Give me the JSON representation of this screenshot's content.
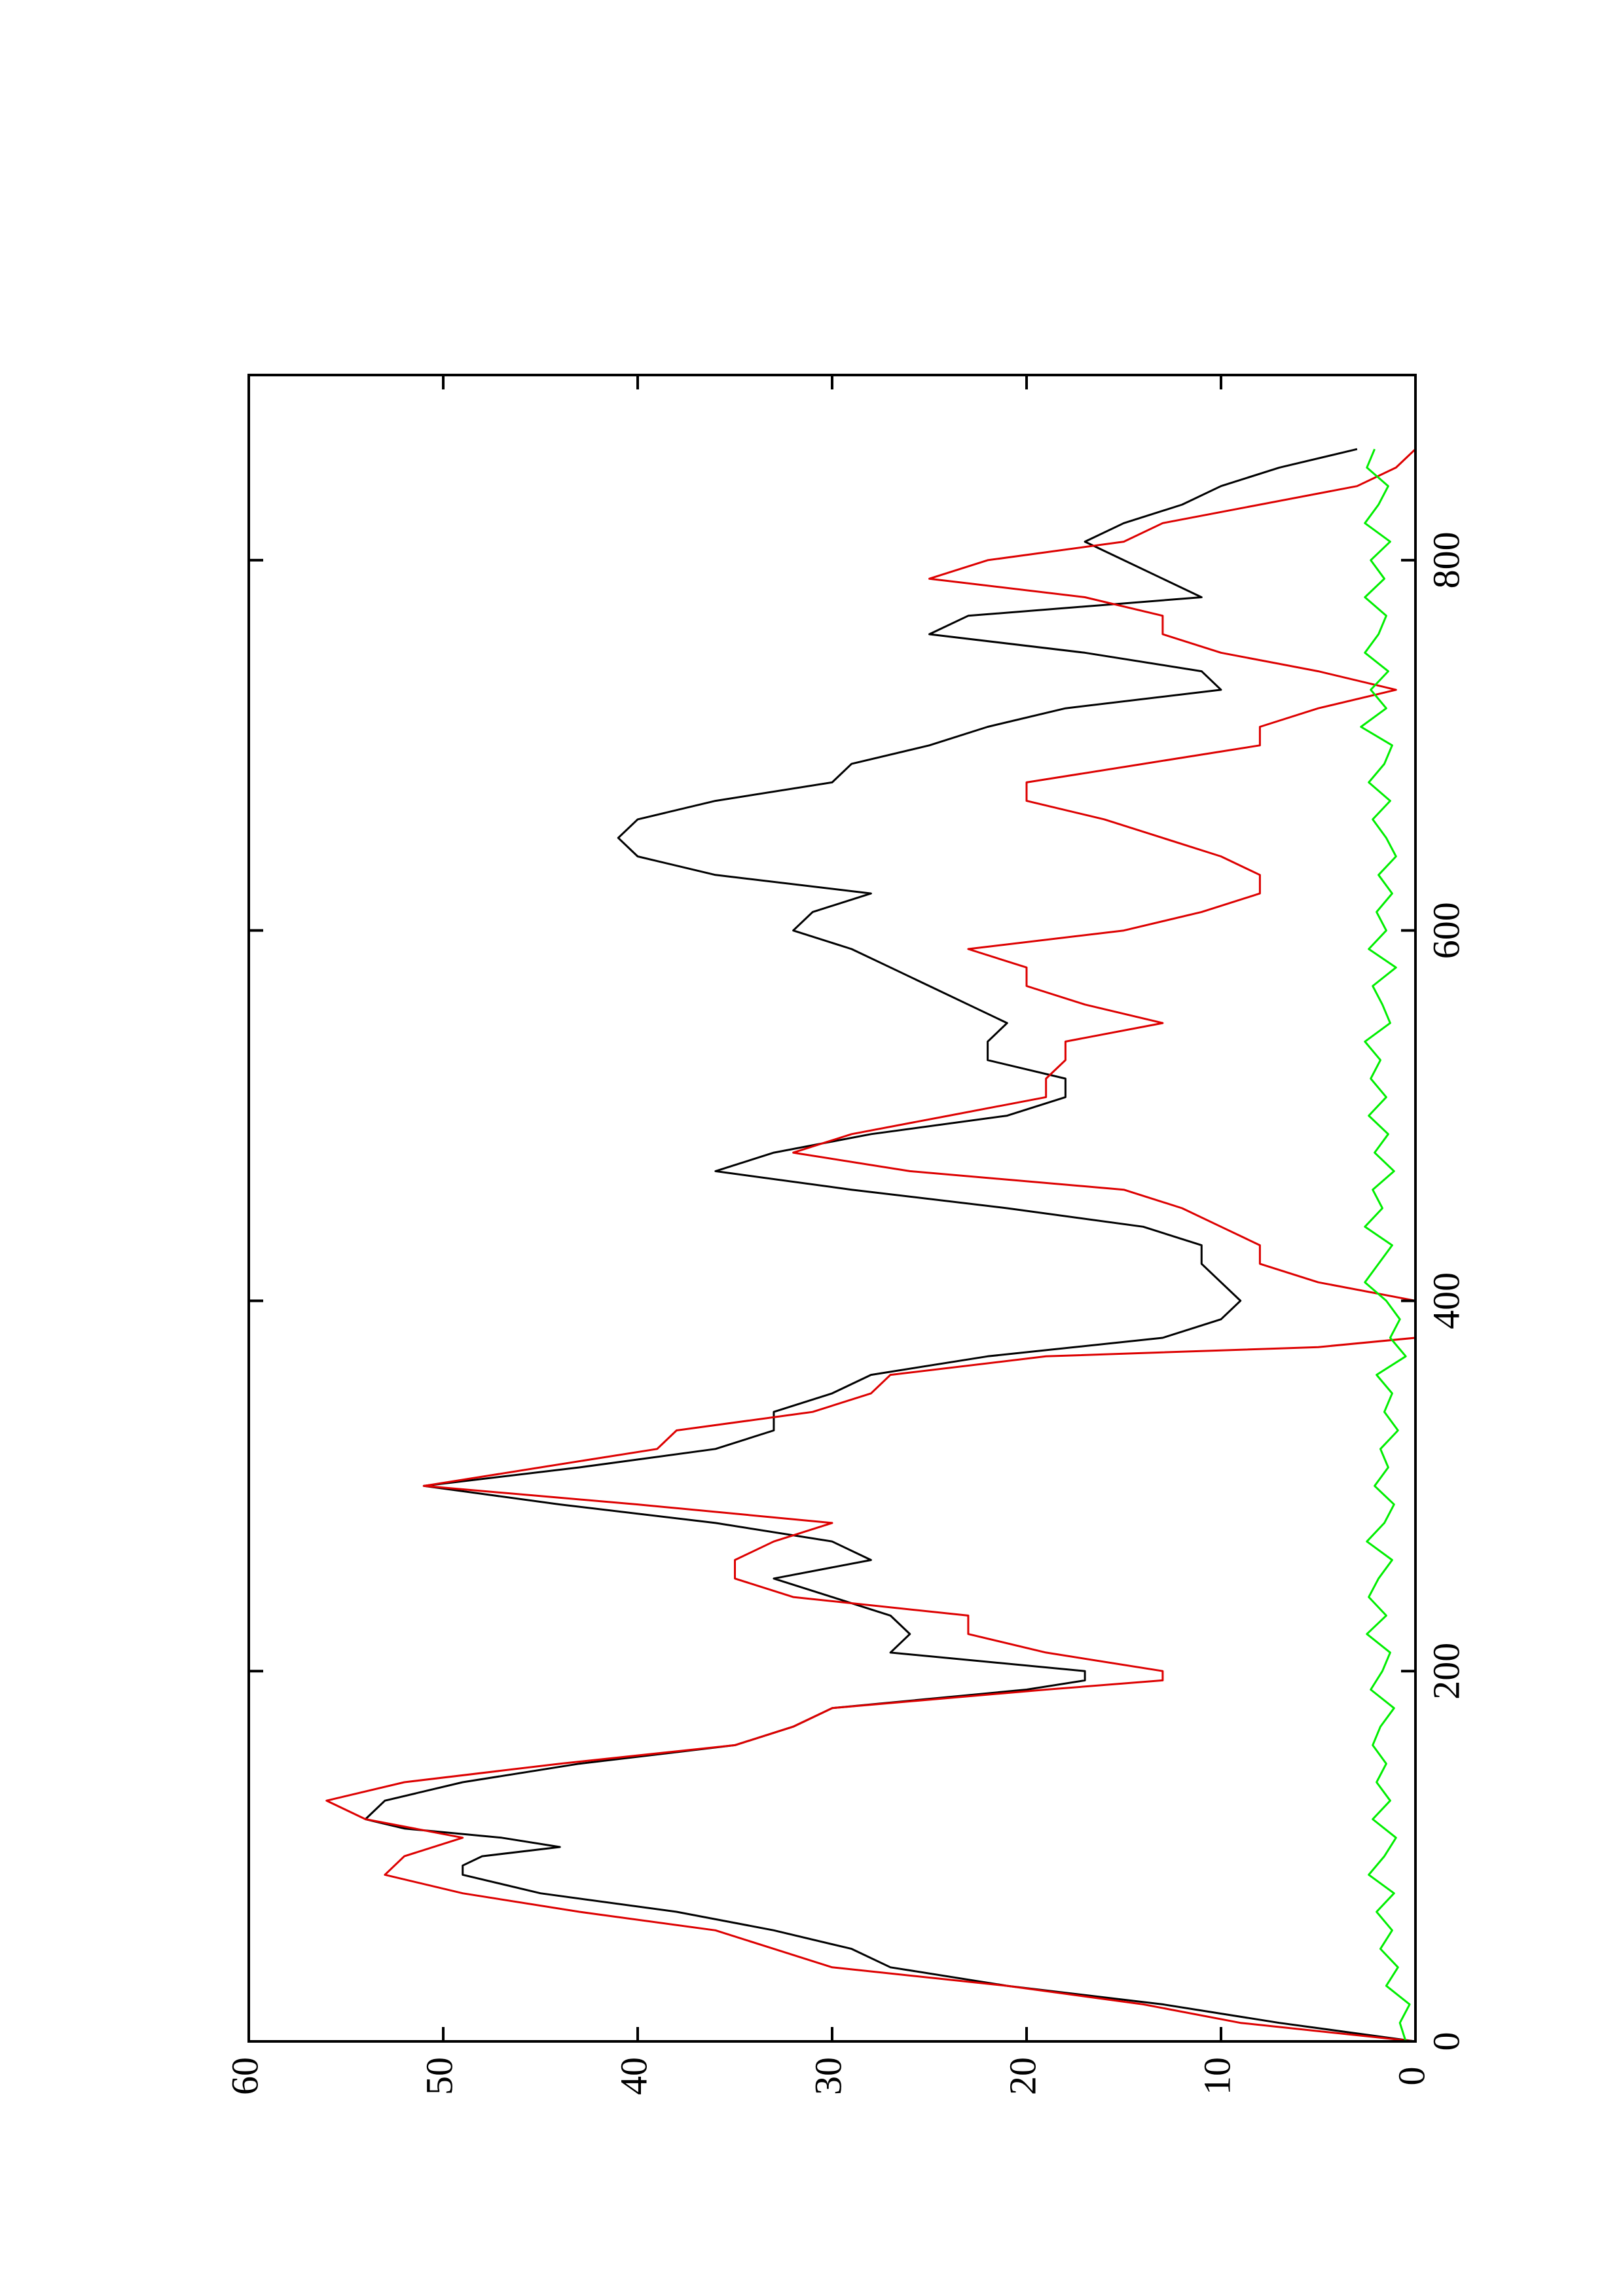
{
  "chart_data": {
    "type": "line",
    "title": "",
    "xlabel": "",
    "ylabel": "",
    "xlim": [
      0,
      900
    ],
    "ylim": [
      0,
      60
    ],
    "x_ticks": [
      0,
      200,
      400,
      600,
      800
    ],
    "x_tick_labels": [
      "0",
      "200",
      "400",
      "600",
      "800"
    ],
    "y_ticks": [
      0,
      10,
      20,
      30,
      40,
      50,
      60
    ],
    "y_tick_labels": [
      "0",
      "10",
      "20",
      "30",
      "40",
      "50",
      "60"
    ],
    "orientation": "rotated 90 degrees counter-clockwise",
    "grid": false,
    "legend": "none",
    "series": [
      {
        "color": "#000000",
        "x": [
          0,
          10,
          20,
          30,
          40,
          50,
          60,
          70,
          80,
          90,
          95,
          100,
          105,
          110,
          115,
          120,
          130,
          140,
          150,
          160,
          170,
          180,
          190,
          195,
          200,
          210,
          220,
          230,
          240,
          250,
          260,
          270,
          280,
          290,
          300,
          310,
          320,
          330,
          340,
          350,
          360,
          370,
          380,
          390,
          400,
          410,
          420,
          430,
          440,
          450,
          460,
          470,
          480,
          490,
          500,
          510,
          520,
          530,
          540,
          550,
          560,
          570,
          580,
          590,
          600,
          610,
          620,
          630,
          640,
          650,
          660,
          670,
          680,
          690,
          700,
          710,
          720,
          730,
          740,
          750,
          760,
          770,
          780,
          790,
          800,
          810,
          820,
          830,
          840,
          850,
          860
        ],
        "y": [
          0,
          7,
          13,
          21,
          27,
          29,
          33,
          38,
          45,
          49,
          49,
          48,
          44,
          47,
          52,
          54,
          53,
          49,
          43,
          35,
          32,
          30,
          20,
          17,
          17,
          27,
          26,
          27,
          30,
          33,
          28,
          30,
          36,
          44,
          51,
          43,
          36,
          33,
          33,
          30,
          28,
          22,
          13,
          10,
          9,
          10,
          11,
          11,
          14,
          21,
          29,
          36,
          33,
          28,
          21,
          18,
          18,
          22,
          22,
          21,
          23,
          25,
          27,
          29,
          32,
          31,
          28,
          36,
          40,
          41,
          40,
          36,
          30,
          29,
          25,
          22,
          18,
          10,
          11,
          17,
          25,
          23,
          11,
          13,
          15,
          17,
          15,
          12,
          10,
          7,
          3
        ],
        "line_width": 3
      },
      {
        "color": "#dd0000",
        "x": [
          0,
          10,
          20,
          30,
          40,
          50,
          60,
          70,
          80,
          90,
          100,
          110,
          120,
          130,
          140,
          150,
          160,
          170,
          180,
          190,
          195,
          200,
          210,
          220,
          230,
          240,
          250,
          260,
          270,
          280,
          290,
          300,
          310,
          320,
          330,
          340,
          350,
          360,
          370,
          375,
          380,
          390,
          400,
          410,
          420,
          430,
          440,
          450,
          460,
          470,
          480,
          490,
          500,
          510,
          520,
          530,
          540,
          550,
          560,
          570,
          580,
          590,
          600,
          610,
          620,
          630,
          640,
          650,
          660,
          670,
          680,
          690,
          700,
          710,
          720,
          730,
          740,
          750,
          760,
          770,
          780,
          790,
          800,
          810,
          820,
          830,
          840,
          850,
          860
        ],
        "y": [
          0,
          9,
          14,
          21,
          30,
          33,
          36,
          43,
          49,
          53,
          52,
          49,
          54,
          56,
          52,
          44,
          35,
          32,
          30,
          19,
          13,
          13,
          19,
          23,
          23,
          32,
          35,
          35,
          33,
          30,
          40,
          51,
          45,
          39,
          38,
          31,
          28,
          27,
          19,
          5,
          0,
          0,
          0,
          5,
          8,
          8,
          10,
          12,
          15,
          26,
          32,
          29,
          24,
          19,
          19,
          18,
          18,
          13,
          17,
          20,
          20,
          23,
          15,
          11,
          8,
          8,
          10,
          13,
          16,
          20,
          20,
          14,
          8,
          8,
          5,
          1,
          5,
          10,
          13,
          13,
          17,
          25,
          22,
          15,
          13,
          8,
          3,
          1,
          0
        ],
        "line_width": 3
      },
      {
        "color": "#00ee00",
        "x": [
          0,
          10,
          20,
          30,
          40,
          50,
          60,
          70,
          80,
          90,
          100,
          110,
          120,
          130,
          140,
          150,
          160,
          170,
          180,
          190,
          200,
          210,
          220,
          230,
          240,
          250,
          260,
          270,
          280,
          290,
          300,
          310,
          320,
          330,
          340,
          350,
          360,
          370,
          380,
          390,
          400,
          410,
          420,
          430,
          440,
          450,
          460,
          470,
          480,
          490,
          500,
          510,
          520,
          530,
          540,
          550,
          560,
          570,
          580,
          590,
          600,
          610,
          620,
          630,
          640,
          650,
          660,
          670,
          680,
          690,
          700,
          710,
          720,
          730,
          740,
          750,
          760,
          770,
          780,
          790,
          800,
          810,
          820,
          830,
          840,
          850,
          860
        ],
        "y": [
          0.5,
          0.8,
          0.3,
          1.5,
          0.9,
          1.8,
          1.2,
          2.0,
          1.1,
          2.4,
          1.6,
          1.0,
          2.2,
          1.3,
          2.0,
          1.5,
          2.2,
          1.8,
          1.1,
          2.3,
          1.7,
          1.3,
          2.5,
          1.5,
          2.4,
          1.9,
          1.2,
          2.5,
          1.6,
          1.1,
          2.1,
          1.4,
          1.8,
          0.9,
          1.6,
          1.2,
          2.0,
          0.5,
          1.3,
          0.8,
          1.5,
          2.6,
          1.9,
          1.2,
          2.6,
          1.7,
          2.2,
          1.1,
          2.1,
          1.4,
          2.4,
          1.5,
          2.3,
          1.8,
          2.6,
          1.3,
          1.7,
          2.2,
          1.0,
          2.4,
          1.5,
          2.0,
          1.2,
          1.9,
          1.0,
          1.5,
          2.2,
          1.3,
          2.4,
          1.6,
          1.2,
          2.8,
          1.5,
          2.3,
          1.4,
          2.6,
          1.9,
          1.5,
          2.6,
          1.6,
          2.3,
          1.3,
          2.6,
          1.9,
          1.4,
          2.5,
          2.1
        ],
        "line_width": 3
      }
    ]
  }
}
